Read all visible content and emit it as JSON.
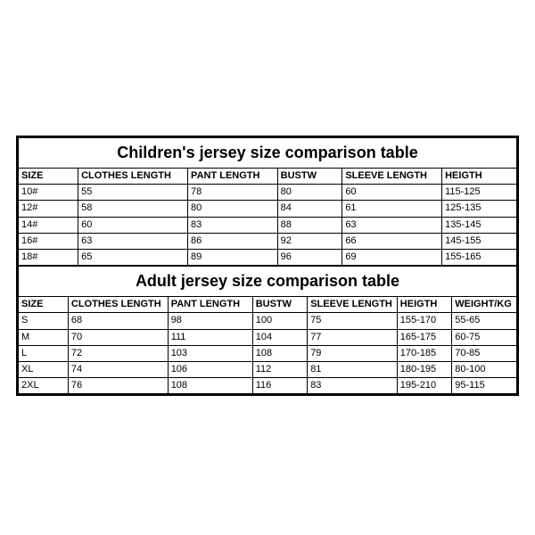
{
  "page": {
    "background_color": "#ffffff",
    "border_color": "#000000",
    "font_family": "Arial",
    "title_fontsize": 18,
    "cell_fontsize": 11
  },
  "children_table": {
    "type": "table",
    "title": "Children's jersey size comparison table",
    "columns": [
      "SIZE",
      "CLOTHES LENGTH",
      "PANT LENGTH",
      "BUSTW",
      "SLEEVE LENGTH",
      "HEIGTH"
    ],
    "rows": [
      [
        "10#",
        "55",
        "78",
        "80",
        "60",
        "115-125"
      ],
      [
        "12#",
        "58",
        "80",
        "84",
        "61",
        "125-135"
      ],
      [
        "14#",
        "60",
        "83",
        "88",
        "63",
        "135-145"
      ],
      [
        "16#",
        "63",
        "86",
        "92",
        "66",
        "145-155"
      ],
      [
        "18#",
        "65",
        "89",
        "96",
        "69",
        "155-165"
      ]
    ],
    "col_widths_pct": [
      12,
      22,
      18,
      13,
      20,
      15
    ]
  },
  "adult_table": {
    "type": "table",
    "title": "Adult jersey size comparison table",
    "columns": [
      "SIZE",
      "CLOTHES LENGTH",
      "PANT LENGTH",
      "BUSTW",
      "SLEEVE LENGTH",
      "HEIGTH",
      "WEIGHT/KG"
    ],
    "rows": [
      [
        "S",
        "68",
        "98",
        "100",
        "75",
        "155-170",
        "55-65"
      ],
      [
        "M",
        "70",
        "111",
        "104",
        "77",
        "165-175",
        "60-75"
      ],
      [
        "L",
        "72",
        "103",
        "108",
        "79",
        "170-185",
        "70-85"
      ],
      [
        "XL",
        "74",
        "106",
        "112",
        "81",
        "180-195",
        "80-100"
      ],
      [
        "2XL",
        "76",
        "108",
        "116",
        "83",
        "195-210",
        "95-115"
      ]
    ],
    "col_widths_pct": [
      10,
      20,
      17,
      11,
      18,
      11,
      13
    ]
  }
}
